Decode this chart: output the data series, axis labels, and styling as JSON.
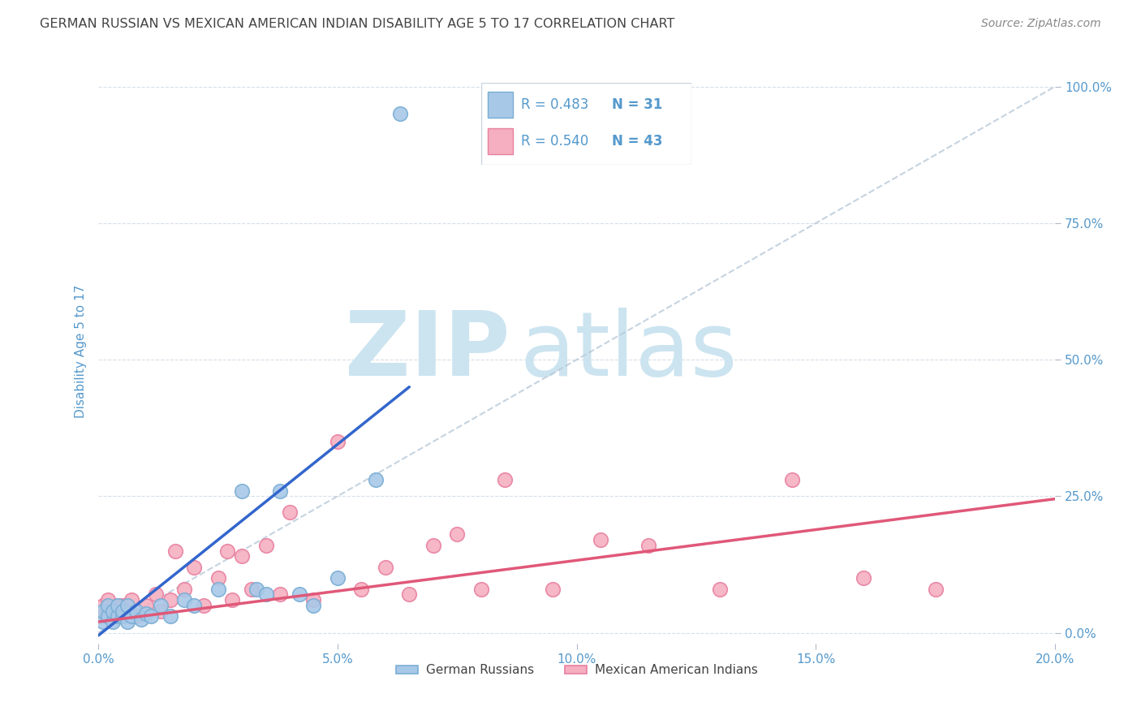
{
  "title": "GERMAN RUSSIAN VS MEXICAN AMERICAN INDIAN DISABILITY AGE 5 TO 17 CORRELATION CHART",
  "source": "Source: ZipAtlas.com",
  "xlabel_ticks": [
    "0.0%",
    "5.0%",
    "10.0%",
    "15.0%",
    "20.0%"
  ],
  "xlabel_tick_vals": [
    0.0,
    0.05,
    0.1,
    0.15,
    0.2
  ],
  "ylabel": "Disability Age 5 to 17",
  "ylabel_ticks": [
    "0.0%",
    "25.0%",
    "50.0%",
    "75.0%",
    "100.0%"
  ],
  "ylabel_tick_vals": [
    0.0,
    0.25,
    0.5,
    0.75,
    1.0
  ],
  "xmin": 0.0,
  "xmax": 0.2,
  "ymin": -0.02,
  "ymax": 1.05,
  "blue_R": 0.483,
  "blue_N": 31,
  "pink_R": 0.54,
  "pink_N": 43,
  "legend_label_blue": "German Russians",
  "legend_label_pink": "Mexican American Indians",
  "marker_color_blue": "#a8c8e8",
  "marker_edge_blue": "#7aaed4",
  "marker_color_pink": "#f5afc0",
  "marker_edge_pink": "#e880a0",
  "line_color_blue": "#3366cc",
  "line_color_pink": "#e05878",
  "diag_color": "#b8c8d8",
  "title_color": "#444444",
  "source_color": "#888888",
  "tick_color": "#5599cc",
  "blue_line_x0": 0.0,
  "blue_line_y0": -0.005,
  "blue_line_x1": 0.065,
  "blue_line_y1": 0.45,
  "pink_line_x0": 0.0,
  "pink_line_y0": 0.02,
  "pink_line_x1": 0.2,
  "pink_line_y1": 0.245,
  "blue_points_x": [
    0.001,
    0.001,
    0.002,
    0.002,
    0.003,
    0.003,
    0.004,
    0.004,
    0.005,
    0.005,
    0.006,
    0.006,
    0.007,
    0.008,
    0.009,
    0.01,
    0.011,
    0.013,
    0.015,
    0.018,
    0.02,
    0.025,
    0.03,
    0.033,
    0.035,
    0.038,
    0.042,
    0.045,
    0.05,
    0.058,
    0.063
  ],
  "blue_points_y": [
    0.02,
    0.04,
    0.03,
    0.05,
    0.02,
    0.04,
    0.03,
    0.05,
    0.03,
    0.04,
    0.02,
    0.05,
    0.03,
    0.04,
    0.025,
    0.035,
    0.03,
    0.05,
    0.03,
    0.06,
    0.05,
    0.08,
    0.26,
    0.08,
    0.07,
    0.26,
    0.07,
    0.05,
    0.1,
    0.28,
    0.95
  ],
  "pink_points_x": [
    0.001,
    0.001,
    0.002,
    0.002,
    0.003,
    0.004,
    0.005,
    0.005,
    0.006,
    0.007,
    0.008,
    0.01,
    0.012,
    0.013,
    0.015,
    0.016,
    0.018,
    0.02,
    0.022,
    0.025,
    0.027,
    0.028,
    0.03,
    0.032,
    0.035,
    0.038,
    0.04,
    0.045,
    0.05,
    0.055,
    0.06,
    0.065,
    0.07,
    0.075,
    0.08,
    0.085,
    0.095,
    0.105,
    0.115,
    0.13,
    0.145,
    0.16,
    0.175
  ],
  "pink_points_y": [
    0.03,
    0.05,
    0.04,
    0.06,
    0.04,
    0.05,
    0.03,
    0.05,
    0.04,
    0.06,
    0.03,
    0.05,
    0.07,
    0.04,
    0.06,
    0.15,
    0.08,
    0.12,
    0.05,
    0.1,
    0.15,
    0.06,
    0.14,
    0.08,
    0.16,
    0.07,
    0.22,
    0.06,
    0.35,
    0.08,
    0.12,
    0.07,
    0.16,
    0.18,
    0.08,
    0.28,
    0.08,
    0.17,
    0.16,
    0.08,
    0.28,
    0.1,
    0.08
  ],
  "watermark_zip": "ZIP",
  "watermark_atlas": "atlas",
  "watermark_color": "#cce4f0",
  "watermark_fontsize": 80
}
